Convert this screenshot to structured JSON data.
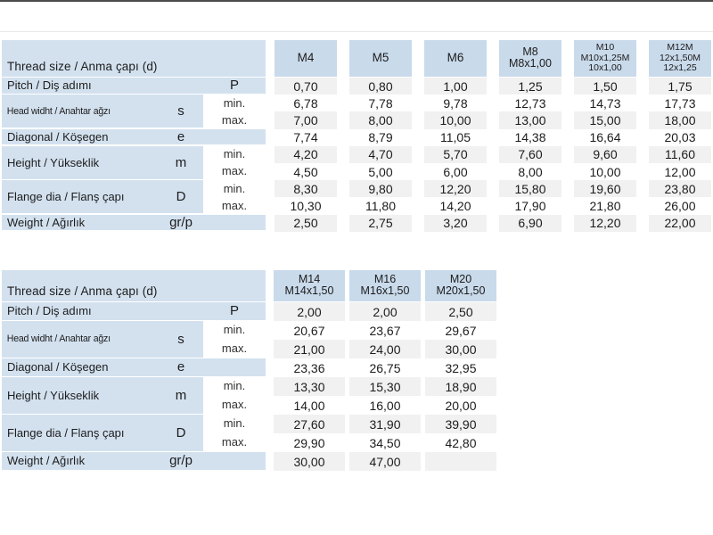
{
  "colors": {
    "band_blue": "#d3e1ef",
    "header_blue": "#c9daeb",
    "stripe": "#f1f1f2",
    "white": "#ffffff",
    "border_dark": "#4b4b4b",
    "rule_light": "#e8e8e8"
  },
  "minmax_labels": {
    "min": "min.",
    "max": "max."
  },
  "tables": [
    {
      "header_label": "Thread size / Anma çapı (d)",
      "columns": [
        {
          "lines": [
            "M4"
          ],
          "size": 1
        },
        {
          "lines": [
            "M5"
          ],
          "size": 1
        },
        {
          "lines": [
            "M6"
          ],
          "size": 1
        },
        {
          "lines": [
            "M8",
            "M8x1,00"
          ],
          "size": 2
        },
        {
          "lines": [
            "M10",
            "M10x1,25M",
            "10x1,00"
          ],
          "size": 3
        },
        {
          "lines": [
            "M12M",
            "12x1,50M",
            "12x1,25"
          ],
          "size": 3
        }
      ],
      "rows": [
        {
          "label": "Pitch / Diş adımı",
          "symbol": "P",
          "symbol_in_minmax": true,
          "values": [
            "0,70",
            "0,80",
            "1,00",
            "1,25",
            "1,50",
            "1,75"
          ]
        },
        {
          "label": "Head widht / Anahtar ağzı",
          "symbol": "s",
          "condensed": true,
          "sub": [
            {
              "tag": "min.",
              "values": [
                "6,78",
                "7,78",
                "9,78",
                "12,73",
                "14,73",
                "17,73"
              ]
            },
            {
              "tag": "max.",
              "values": [
                "7,00",
                "8,00",
                "10,00",
                "13,00",
                "15,00",
                "18,00"
              ]
            }
          ]
        },
        {
          "label": "Diagonal / Köşegen",
          "symbol": "e",
          "values": [
            "7,74",
            "8,79",
            "11,05",
            "14,38",
            "16,64",
            "20,03"
          ]
        },
        {
          "label": "Height / Yükseklik",
          "symbol": "m",
          "sub": [
            {
              "tag": "min.",
              "values": [
                "4,20",
                "4,70",
                "5,70",
                "7,60",
                "9,60",
                "11,60"
              ]
            },
            {
              "tag": "max.",
              "values": [
                "4,50",
                "5,00",
                "6,00",
                "8,00",
                "10,00",
                "12,00"
              ]
            }
          ]
        },
        {
          "label": "Flange dia / Flanş çapı",
          "symbol": "D",
          "sub": [
            {
              "tag": "min.",
              "values": [
                "8,30",
                "9,80",
                "12,20",
                "15,80",
                "19,60",
                "23,80"
              ]
            },
            {
              "tag": "max.",
              "values": [
                "10,30",
                "11,80",
                "14,20",
                "17,90",
                "21,80",
                "26,00"
              ]
            }
          ]
        },
        {
          "label": "Weight / Ağırlık",
          "symbol": "gr/p",
          "values": [
            "2,50",
            "2,75",
            "3,20",
            "6,90",
            "12,20",
            "22,00"
          ]
        }
      ]
    },
    {
      "header_label": "Thread size / Anma çapı (d)",
      "columns": [
        {
          "lines": [
            "M14",
            "M14x1,50"
          ],
          "size": 2
        },
        {
          "lines": [
            "M16",
            "M16x1,50"
          ],
          "size": 2
        },
        {
          "lines": [
            "M20",
            "M20x1,50"
          ],
          "size": 2
        }
      ],
      "rows": [
        {
          "label": "Pitch / Diş adımı",
          "symbol": "P",
          "symbol_in_minmax": true,
          "values": [
            "2,00",
            "2,00",
            "2,50"
          ]
        },
        {
          "label": "Head widht / Anahtar ağzı",
          "symbol": "s",
          "condensed": true,
          "sub": [
            {
              "tag": "min.",
              "values": [
                "20,67",
                "23,67",
                "29,67"
              ]
            },
            {
              "tag": "max.",
              "values": [
                "21,00",
                "24,00",
                "30,00"
              ]
            }
          ]
        },
        {
          "label": "Diagonal / Köşegen",
          "symbol": "e",
          "values": [
            "23,36",
            "26,75",
            "32,95"
          ]
        },
        {
          "label": "Height / Yükseklik",
          "symbol": "m",
          "sub": [
            {
              "tag": "min.",
              "values": [
                "13,30",
                "15,30",
                "18,90"
              ]
            },
            {
              "tag": "max.",
              "values": [
                "14,00",
                "16,00",
                "20,00"
              ]
            }
          ]
        },
        {
          "label": "Flange dia / Flanş çapı",
          "symbol": "D",
          "sub": [
            {
              "tag": "min.",
              "values": [
                "27,60",
                "31,90",
                "39,90"
              ]
            },
            {
              "tag": "max.",
              "values": [
                "29,90",
                "34,50",
                "42,80"
              ]
            }
          ]
        },
        {
          "label": "Weight / Ağırlık",
          "symbol": "gr/p",
          "values": [
            "30,00",
            "47,00",
            ""
          ]
        }
      ]
    }
  ]
}
